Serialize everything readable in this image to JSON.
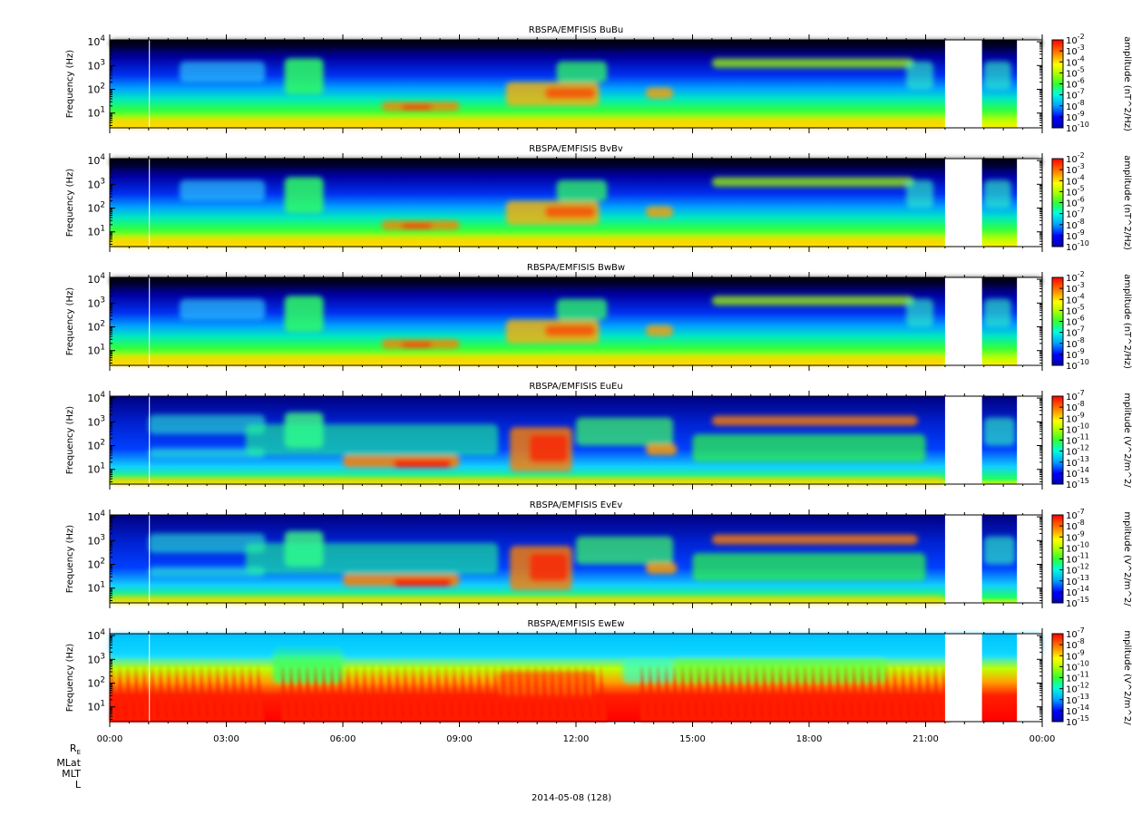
{
  "figure": {
    "date_label": "2014-05-08 (128)",
    "ephemeris_labels": [
      "R",
      "MLat",
      "MLT",
      "L"
    ],
    "ephemeris_subscript": "E"
  },
  "chart_data": [
    {
      "type": "heatmap",
      "title": "RBSPA/EMFISIS  BuBu",
      "ylabel": "Frequency (Hz)",
      "yscale": "log",
      "ylim": [
        2.4,
        12000
      ],
      "yticks": [
        "10^1",
        "10^2",
        "10^3",
        "10^4"
      ],
      "xticks": [
        "00:00",
        "03:00",
        "06:00",
        "09:00",
        "12:00",
        "15:00",
        "18:00",
        "21:00",
        "00:00"
      ],
      "xlim_hours": [
        0,
        24
      ],
      "data_gaps_hours": [
        [
          21.5,
          22.45
        ],
        [
          23.35,
          24
        ]
      ],
      "colorbar": {
        "label": "amplitude (nT^2/Hz)",
        "ticks": [
          "10^-2",
          "10^-3",
          "10^-4",
          "10^-5",
          "10^-6",
          "10^-7",
          "10^-8",
          "10^-9",
          "10^-10"
        ],
        "scale": "log"
      },
      "component": "B"
    },
    {
      "type": "heatmap",
      "title": "RBSPA/EMFISIS  BvBv",
      "ylabel": "Frequency (Hz)",
      "yscale": "log",
      "ylim": [
        2.4,
        12000
      ],
      "yticks": [
        "10^1",
        "10^2",
        "10^3",
        "10^4"
      ],
      "xticks": [
        "00:00",
        "03:00",
        "06:00",
        "09:00",
        "12:00",
        "15:00",
        "18:00",
        "21:00",
        "00:00"
      ],
      "xlim_hours": [
        0,
        24
      ],
      "data_gaps_hours": [
        [
          21.5,
          22.45
        ],
        [
          23.35,
          24
        ]
      ],
      "colorbar": {
        "label": "amplitude (nT^2/Hz)",
        "ticks": [
          "10^-2",
          "10^-3",
          "10^-4",
          "10^-5",
          "10^-6",
          "10^-7",
          "10^-8",
          "10^-9",
          "10^-10"
        ],
        "scale": "log"
      },
      "component": "B"
    },
    {
      "type": "heatmap",
      "title": "RBSPA/EMFISIS  BwBw",
      "ylabel": "Frequency (Hz)",
      "yscale": "log",
      "ylim": [
        2.4,
        12000
      ],
      "yticks": [
        "10^1",
        "10^2",
        "10^3",
        "10^4"
      ],
      "xticks": [
        "00:00",
        "03:00",
        "06:00",
        "09:00",
        "12:00",
        "15:00",
        "18:00",
        "21:00",
        "00:00"
      ],
      "xlim_hours": [
        0,
        24
      ],
      "data_gaps_hours": [
        [
          21.5,
          22.45
        ],
        [
          23.35,
          24
        ]
      ],
      "colorbar": {
        "label": "amplitude (nT^2/Hz)",
        "ticks": [
          "10^-2",
          "10^-3",
          "10^-4",
          "10^-5",
          "10^-6",
          "10^-7",
          "10^-8",
          "10^-9",
          "10^-10"
        ],
        "scale": "log"
      },
      "component": "B"
    },
    {
      "type": "heatmap",
      "title": "RBSPA/EMFISIS  EuEu",
      "ylabel": "Frequency (Hz)",
      "yscale": "log",
      "ylim": [
        2.4,
        12000
      ],
      "yticks": [
        "10^1",
        "10^2",
        "10^3",
        "10^4"
      ],
      "xticks": [
        "00:00",
        "03:00",
        "06:00",
        "09:00",
        "12:00",
        "15:00",
        "18:00",
        "21:00",
        "00:00"
      ],
      "xlim_hours": [
        0,
        24
      ],
      "data_gaps_hours": [
        [
          21.5,
          22.45
        ],
        [
          23.35,
          24
        ]
      ],
      "colorbar": {
        "label": "mplitude (V^2/m^2/",
        "ticks": [
          "10^-7",
          "10^-8",
          "10^-9",
          "10^-10",
          "10^-11",
          "10^-12",
          "10^-13",
          "10^-14",
          "10^-15"
        ],
        "scale": "log"
      },
      "component": "E"
    },
    {
      "type": "heatmap",
      "title": "RBSPA/EMFISIS  EvEv",
      "ylabel": "Frequency (Hz)",
      "yscale": "log",
      "ylim": [
        2.4,
        12000
      ],
      "yticks": [
        "10^1",
        "10^2",
        "10^3",
        "10^4"
      ],
      "xticks": [
        "00:00",
        "03:00",
        "06:00",
        "09:00",
        "12:00",
        "15:00",
        "18:00",
        "21:00",
        "00:00"
      ],
      "xlim_hours": [
        0,
        24
      ],
      "data_gaps_hours": [
        [
          21.5,
          22.45
        ],
        [
          23.35,
          24
        ]
      ],
      "colorbar": {
        "label": "mplitude (V^2/m^2/",
        "ticks": [
          "10^-7",
          "10^-8",
          "10^-9",
          "10^-10",
          "10^-11",
          "10^-12",
          "10^-13",
          "10^-14",
          "10^-15"
        ],
        "scale": "log"
      },
      "component": "E"
    },
    {
      "type": "heatmap",
      "title": "RBSPA/EMFISIS  EwEw",
      "ylabel": "Frequency (Hz)",
      "yscale": "log",
      "ylim": [
        2.4,
        12000
      ],
      "yticks": [
        "10^1",
        "10^2",
        "10^3",
        "10^4"
      ],
      "xticks": [
        "00:00",
        "03:00",
        "06:00",
        "09:00",
        "12:00",
        "15:00",
        "18:00",
        "21:00",
        "00:00"
      ],
      "xlim_hours": [
        0,
        24
      ],
      "data_gaps_hours": [
        [
          21.5,
          22.45
        ],
        [
          23.35,
          24
        ]
      ],
      "colorbar": {
        "label": "mplitude (V^2/m^2/",
        "ticks": [
          "10^-7",
          "10^-8",
          "10^-9",
          "10^-10",
          "10^-11",
          "10^-12",
          "10^-13",
          "10^-14",
          "10^-15"
        ],
        "scale": "log"
      },
      "component": "Ew"
    }
  ]
}
